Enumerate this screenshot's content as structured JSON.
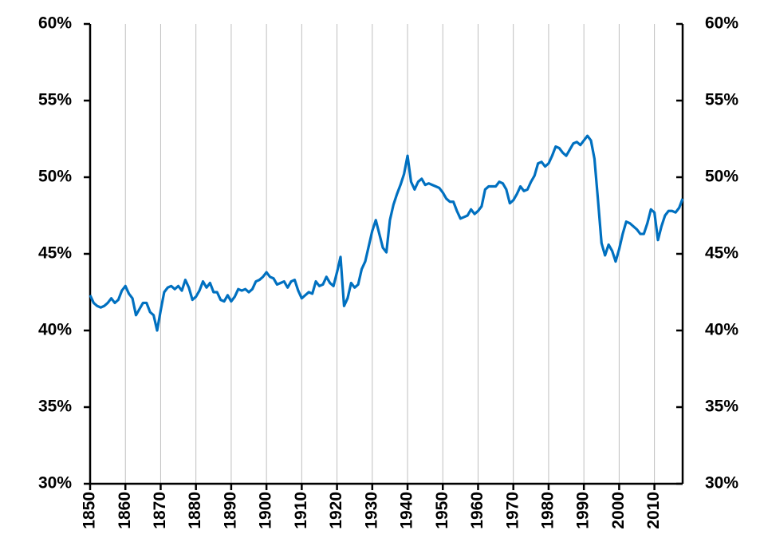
{
  "chart_data": {
    "type": "line",
    "x": [
      1850,
      1851,
      1852,
      1853,
      1854,
      1855,
      1856,
      1857,
      1858,
      1859,
      1860,
      1861,
      1862,
      1863,
      1864,
      1865,
      1866,
      1867,
      1868,
      1869,
      1870,
      1871,
      1872,
      1873,
      1874,
      1875,
      1876,
      1877,
      1878,
      1879,
      1880,
      1881,
      1882,
      1883,
      1884,
      1885,
      1886,
      1887,
      1888,
      1889,
      1890,
      1891,
      1892,
      1893,
      1894,
      1895,
      1896,
      1897,
      1898,
      1899,
      1900,
      1901,
      1902,
      1903,
      1904,
      1905,
      1906,
      1907,
      1908,
      1909,
      1910,
      1911,
      1912,
      1913,
      1914,
      1915,
      1916,
      1917,
      1918,
      1919,
      1920,
      1921,
      1922,
      1923,
      1924,
      1925,
      1926,
      1927,
      1928,
      1929,
      1930,
      1931,
      1932,
      1933,
      1934,
      1935,
      1936,
      1937,
      1938,
      1939,
      1940,
      1941,
      1942,
      1943,
      1944,
      1945,
      1946,
      1947,
      1948,
      1949,
      1950,
      1951,
      1952,
      1953,
      1954,
      1955,
      1956,
      1957,
      1958,
      1959,
      1960,
      1961,
      1962,
      1963,
      1964,
      1965,
      1966,
      1967,
      1968,
      1969,
      1970,
      1971,
      1972,
      1973,
      1974,
      1975,
      1976,
      1977,
      1978,
      1979,
      1980,
      1981,
      1982,
      1983,
      1984,
      1985,
      1986,
      1987,
      1988,
      1989,
      1990,
      1991,
      1992,
      1993,
      1994,
      1995,
      1996,
      1997,
      1998,
      1999,
      2000,
      2001,
      2002,
      2003,
      2004,
      2005,
      2006,
      2007,
      2008,
      2009,
      2010,
      2011,
      2012,
      2013,
      2014,
      2015,
      2016,
      2017,
      2018
    ],
    "values": [
      42.3,
      41.8,
      41.6,
      41.5,
      41.6,
      41.8,
      42.1,
      41.8,
      42.0,
      42.6,
      42.9,
      42.4,
      42.1,
      41.0,
      41.4,
      41.8,
      41.8,
      41.2,
      41.0,
      40.0,
      41.3,
      42.5,
      42.8,
      42.9,
      42.7,
      42.9,
      42.6,
      43.3,
      42.8,
      42.0,
      42.2,
      42.6,
      43.2,
      42.8,
      43.1,
      42.5,
      42.5,
      42.0,
      41.9,
      42.3,
      41.9,
      42.2,
      42.7,
      42.6,
      42.7,
      42.5,
      42.7,
      43.2,
      43.3,
      43.5,
      43.8,
      43.5,
      43.4,
      43.0,
      43.1,
      43.2,
      42.8,
      43.2,
      43.3,
      42.6,
      42.1,
      42.3,
      42.5,
      42.4,
      43.2,
      42.9,
      43.0,
      43.5,
      43.1,
      42.9,
      43.8,
      44.8,
      41.6,
      42.1,
      43.1,
      42.8,
      43.0,
      44.0,
      44.5,
      45.5,
      46.5,
      47.2,
      46.3,
      45.4,
      45.1,
      47.2,
      48.2,
      48.9,
      49.5,
      50.2,
      51.4,
      49.7,
      49.2,
      49.7,
      49.9,
      49.5,
      49.6,
      49.5,
      49.4,
      49.3,
      49.0,
      48.6,
      48.4,
      48.4,
      47.8,
      47.3,
      47.4,
      47.5,
      47.9,
      47.6,
      47.8,
      48.1,
      49.2,
      49.4,
      49.4,
      49.4,
      49.7,
      49.6,
      49.2,
      48.3,
      48.5,
      48.9,
      49.4,
      49.1,
      49.2,
      49.7,
      50.1,
      50.9,
      51.0,
      50.7,
      50.9,
      51.4,
      52.0,
      51.9,
      51.6,
      51.4,
      51.8,
      52.2,
      52.3,
      52.1,
      52.4,
      52.7,
      52.4,
      51.2,
      48.5,
      45.7,
      44.9,
      45.6,
      45.2,
      44.5,
      45.3,
      46.3,
      47.1,
      47.0,
      46.8,
      46.6,
      46.3,
      46.3,
      47.0,
      47.9,
      47.7,
      45.9,
      46.8,
      47.5,
      47.8,
      47.8,
      47.7,
      48.0,
      48.6
    ],
    "color": "#0070c0",
    "xlim": [
      1850,
      2018
    ],
    "xticks": [
      1850,
      1860,
      1870,
      1880,
      1890,
      1900,
      1910,
      1920,
      1930,
      1940,
      1950,
      1960,
      1970,
      1980,
      1990,
      2000,
      2010
    ],
    "ylim": [
      30,
      60
    ],
    "yticks": [
      {
        "value": 30,
        "label": "30%"
      },
      {
        "value": 35,
        "label": "35%"
      },
      {
        "value": 40,
        "label": "40%"
      },
      {
        "value": 45,
        "label": "45%"
      },
      {
        "value": 50,
        "label": "50%"
      },
      {
        "value": 55,
        "label": "55%"
      },
      {
        "value": 60,
        "label": "60%"
      }
    ],
    "y2lim": [
      30,
      60
    ],
    "y2ticks": [
      {
        "value": 30,
        "label": "30%"
      },
      {
        "value": 35,
        "label": "35%"
      },
      {
        "value": 40,
        "label": "40%"
      },
      {
        "value": 45,
        "label": "45%"
      },
      {
        "value": 50,
        "label": "50%"
      },
      {
        "value": 55,
        "label": "55%"
      },
      {
        "value": 60,
        "label": "60%"
      }
    ],
    "grid": true
  }
}
